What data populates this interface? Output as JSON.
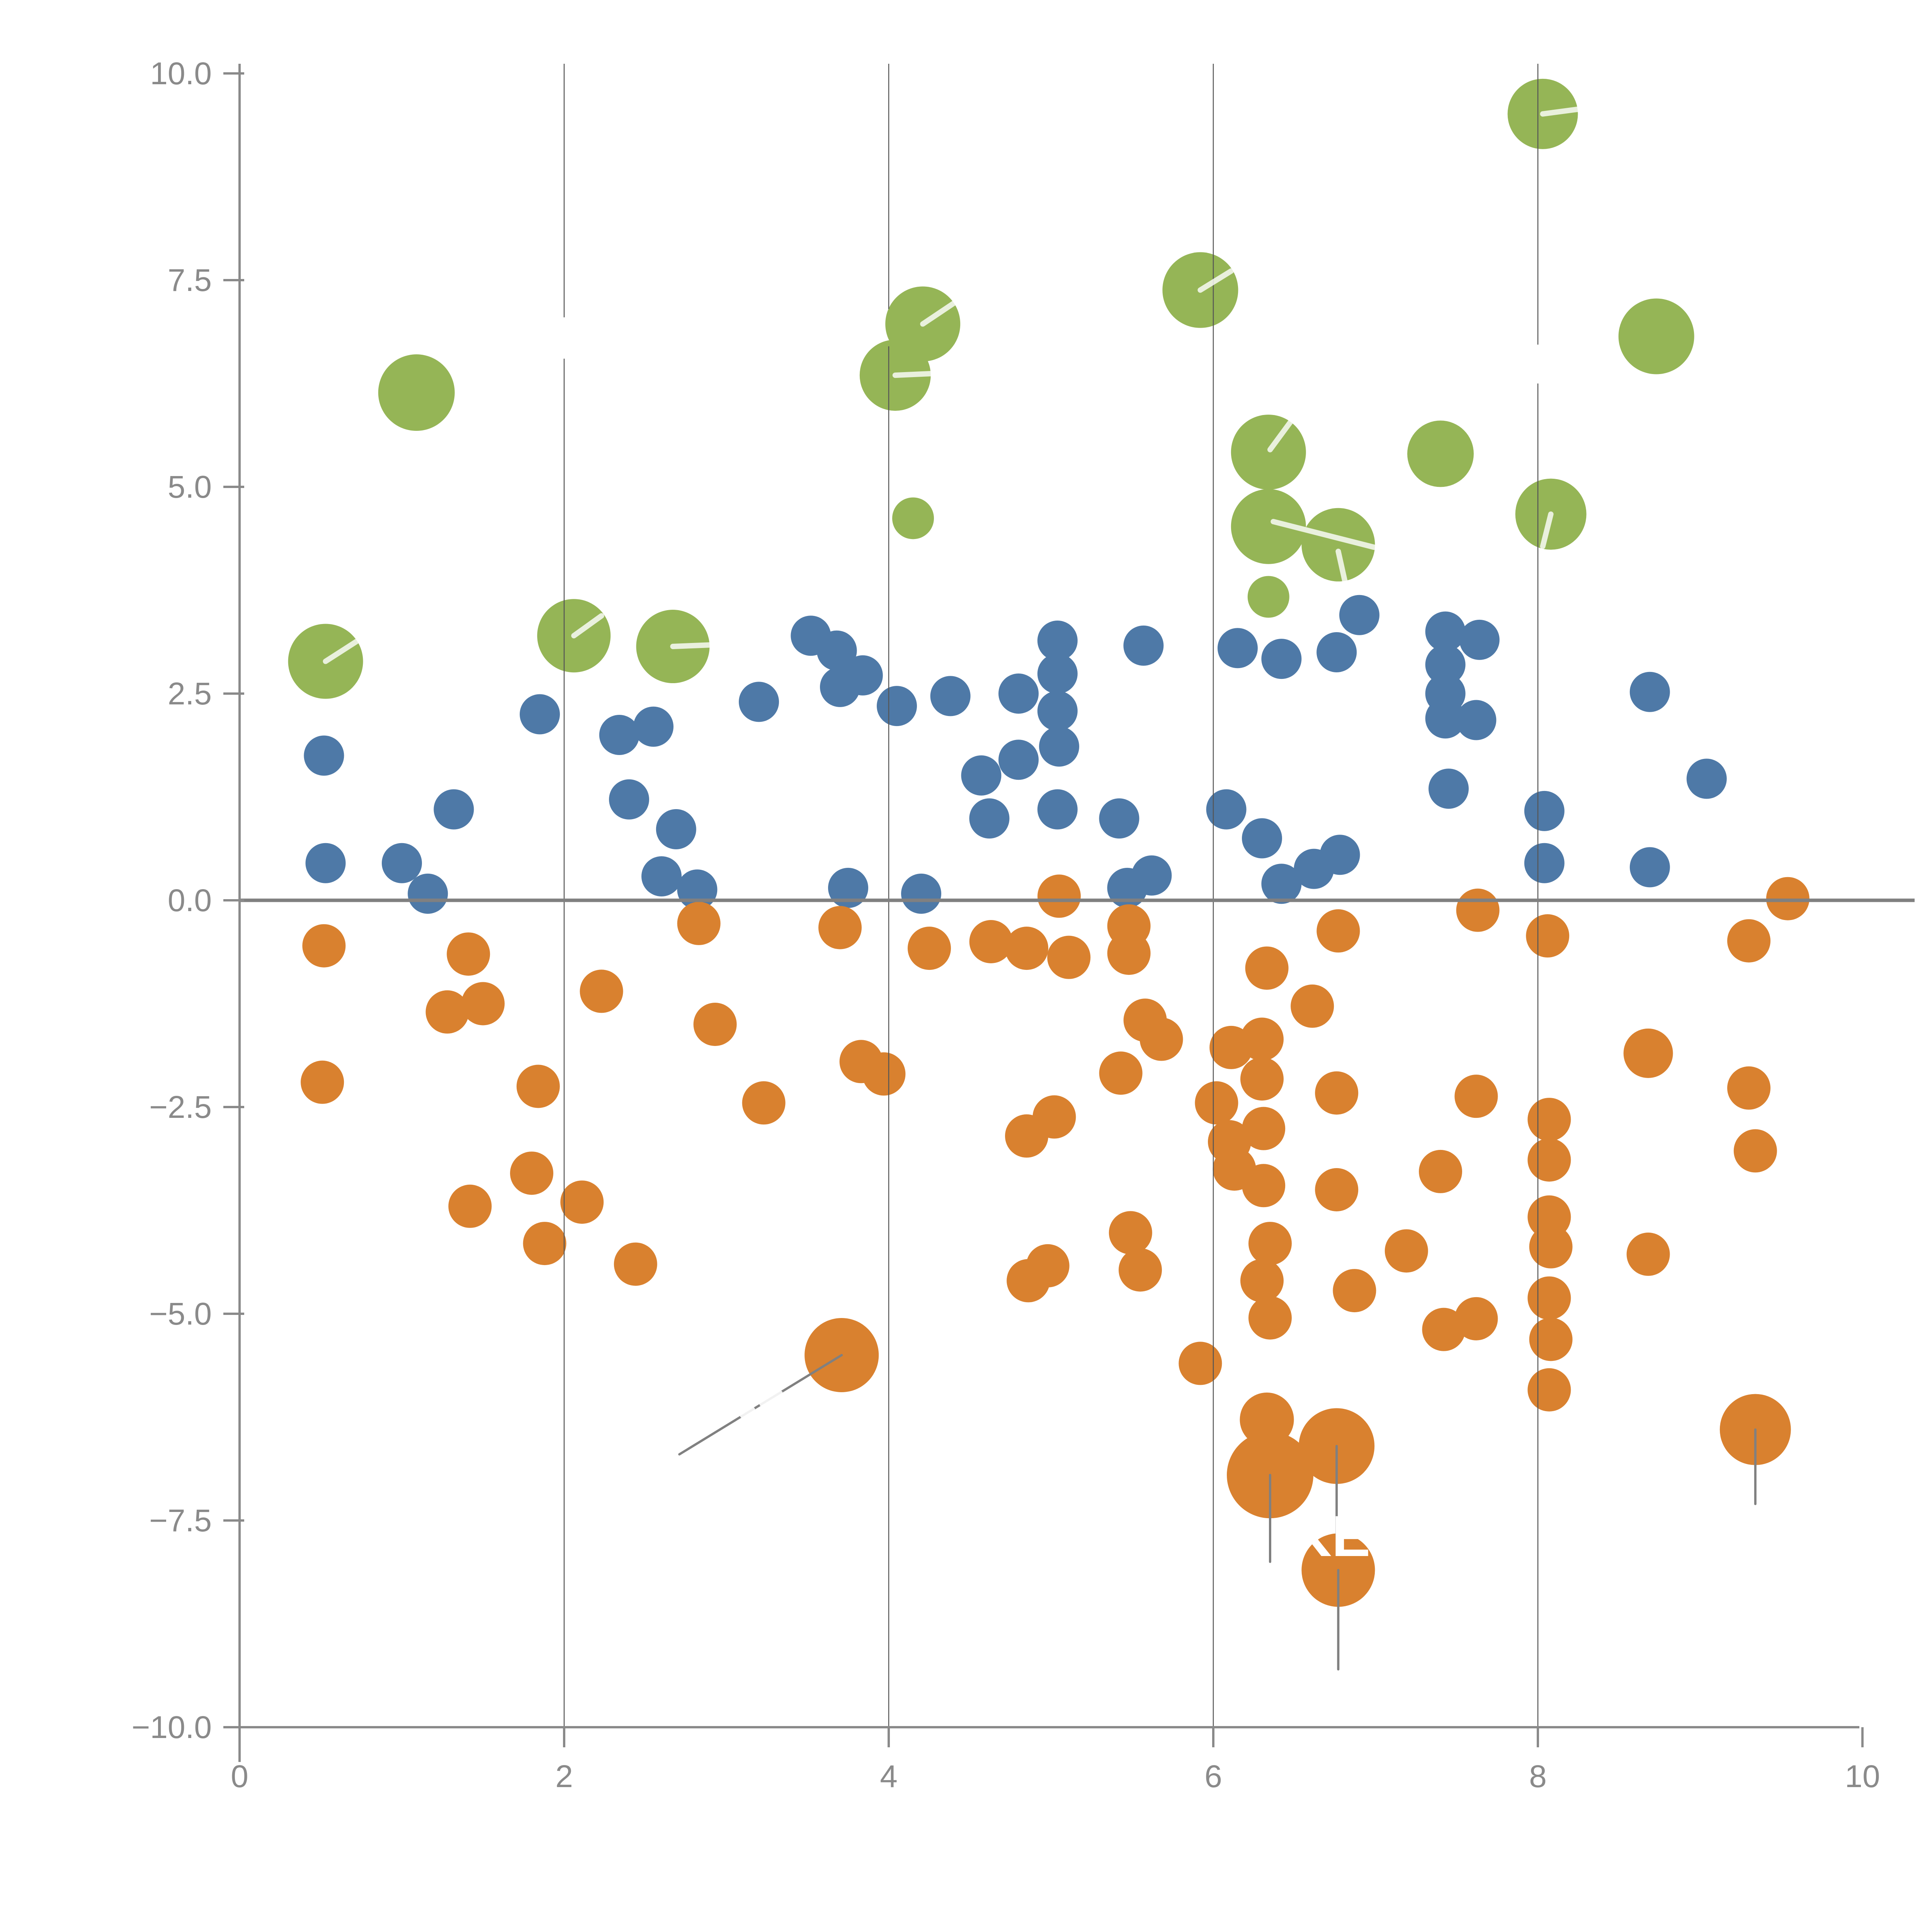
{
  "chart_data": {
    "type": "scatter",
    "title": "",
    "xlabel": "",
    "ylabel": "",
    "xlim": [
      0,
      10
    ],
    "ylim": [
      -10,
      10
    ],
    "grid": "vertical-only",
    "legend": "none",
    "x_ticks": [
      0,
      2,
      4,
      6,
      8,
      10
    ],
    "x_tick_labels": [
      "0",
      "2",
      "4",
      "6",
      "8",
      "10"
    ],
    "y_ticks": [
      10.0,
      7.5,
      5.0,
      2.5,
      0.0,
      -2.5,
      -5.0,
      -7.5,
      -10.0
    ],
    "y_tick_labels": [
      "10.0",
      "7.5",
      "5.0",
      "2.5",
      "0.0",
      "−2.5",
      "−5.0",
      "−7.5",
      "−10.0"
    ],
    "gridline_x_values": [
      2,
      4,
      6,
      8
    ],
    "gridline_gaps": [
      {
        "x": 2,
        "y_from": 6.55,
        "y_to": 7.05
      },
      {
        "x": 4,
        "y_from": 6.7,
        "y_to": 7.15
      },
      {
        "x": 8,
        "y_from": 6.25,
        "y_to": 6.72
      }
    ],
    "zero_line_y": 0,
    "series": [
      {
        "name": "green-bubbles",
        "color": "#95b556",
        "default_radius": 95,
        "points": [
          [
            1.09,
            6.14,
            99
          ],
          [
            0.53,
            2.89,
            97
          ],
          [
            2.06,
            3.2,
            95
          ],
          [
            2.67,
            3.07,
            95
          ],
          [
            4.21,
            6.97,
            97
          ],
          [
            4.04,
            6.35,
            92
          ],
          [
            4.15,
            4.62,
            54
          ],
          [
            5.92,
            7.38,
            98
          ],
          [
            8.03,
            9.51,
            91
          ],
          [
            8.73,
            6.82,
            98
          ],
          [
            6.34,
            5.42,
            97
          ],
          [
            6.34,
            4.52,
            97
          ],
          [
            6.77,
            4.3,
            95
          ],
          [
            6.34,
            3.67,
            54
          ],
          [
            7.4,
            5.4,
            86
          ],
          [
            8.08,
            4.67,
            92
          ]
        ]
      },
      {
        "name": "blue-dots",
        "color": "#4e79a7",
        "default_radius": 52,
        "points": [
          [
            0.52,
            1.75
          ],
          [
            1.32,
            1.1
          ],
          [
            0.53,
            0.45
          ],
          [
            1.0,
            0.45
          ],
          [
            1.16,
            0.08
          ],
          [
            1.85,
            2.25
          ],
          [
            2.34,
            2.0
          ],
          [
            2.55,
            2.1
          ],
          [
            2.4,
            1.22
          ],
          [
            2.69,
            0.86
          ],
          [
            2.6,
            0.29
          ],
          [
            2.82,
            0.13
          ],
          [
            3.2,
            2.4
          ],
          [
            3.52,
            3.2
          ],
          [
            3.68,
            3.02
          ],
          [
            3.7,
            2.58
          ],
          [
            3.84,
            2.72
          ],
          [
            4.05,
            2.35
          ],
          [
            3.75,
            0.15
          ],
          [
            4.2,
            0.08
          ],
          [
            4.38,
            2.47
          ],
          [
            4.8,
            2.5
          ],
          [
            5.04,
            3.14
          ],
          [
            5.04,
            2.74
          ],
          [
            5.04,
            2.29
          ],
          [
            5.05,
            1.86
          ],
          [
            4.8,
            1.7
          ],
          [
            4.57,
            1.51
          ],
          [
            4.62,
            0.99
          ],
          [
            5.04,
            1.1
          ],
          [
            5.42,
            0.99
          ],
          [
            5.57,
            3.08
          ],
          [
            5.47,
            0.15
          ],
          [
            5.62,
            0.3
          ],
          [
            6.15,
            3.05
          ],
          [
            6.42,
            2.92
          ],
          [
            6.76,
            3.0
          ],
          [
            6.9,
            3.45
          ],
          [
            6.08,
            1.1
          ],
          [
            6.3,
            0.75
          ],
          [
            6.42,
            0.2
          ],
          [
            6.62,
            0.38
          ],
          [
            6.78,
            0.55
          ],
          [
            7.43,
            3.25
          ],
          [
            7.64,
            3.15
          ],
          [
            7.43,
            2.85
          ],
          [
            7.43,
            2.5
          ],
          [
            7.43,
            2.2
          ],
          [
            7.62,
            2.18
          ],
          [
            7.45,
            1.35
          ],
          [
            8.04,
            1.08
          ],
          [
            8.04,
            0.45
          ],
          [
            8.69,
            2.52
          ],
          [
            9.04,
            1.47
          ],
          [
            8.69,
            0.4
          ]
        ]
      },
      {
        "name": "orange-dots",
        "color": "#d9812f",
        "default_radius": 56,
        "points": [
          [
            5.05,
            0.05
          ],
          [
            9.54,
            0.02
          ],
          [
            7.63,
            -0.12
          ],
          [
            0.52,
            -0.55
          ],
          [
            1.41,
            -0.65
          ],
          [
            2.83,
            -0.28
          ],
          [
            3.7,
            -0.33
          ],
          [
            4.25,
            -0.58
          ],
          [
            4.63,
            -0.5
          ],
          [
            4.85,
            -0.58
          ],
          [
            5.11,
            -0.69
          ],
          [
            5.48,
            -0.31
          ],
          [
            5.48,
            -0.64
          ],
          [
            6.33,
            -0.82
          ],
          [
            6.77,
            -0.37
          ],
          [
            8.06,
            -0.43
          ],
          [
            9.3,
            -0.49
          ],
          [
            1.28,
            -1.35
          ],
          [
            1.5,
            -1.25
          ],
          [
            2.23,
            -1.1
          ],
          [
            2.93,
            -1.5
          ],
          [
            0.51,
            -2.2
          ],
          [
            1.84,
            -2.25
          ],
          [
            3.23,
            -2.45
          ],
          [
            3.83,
            -1.95
          ],
          [
            3.97,
            -2.1
          ],
          [
            5.43,
            -2.09
          ],
          [
            5.58,
            -1.45
          ],
          [
            5.68,
            -1.68
          ],
          [
            6.11,
            -1.78
          ],
          [
            6.3,
            -1.68
          ],
          [
            6.61,
            -1.28
          ],
          [
            6.02,
            -2.45
          ],
          [
            6.3,
            -2.16
          ],
          [
            6.1,
            -2.92
          ],
          [
            6.31,
            -2.76
          ],
          [
            6.13,
            -3.25
          ],
          [
            6.31,
            -3.45
          ],
          [
            6.35,
            -4.15
          ],
          [
            6.3,
            -4.6
          ],
          [
            6.35,
            -5.05
          ],
          [
            5.92,
            -5.6
          ],
          [
            6.76,
            -2.33
          ],
          [
            7.62,
            -2.37
          ],
          [
            7.4,
            -3.28
          ],
          [
            6.76,
            -3.5
          ],
          [
            7.19,
            -4.24
          ],
          [
            6.87,
            -4.72
          ],
          [
            7.42,
            -5.19
          ],
          [
            7.62,
            -5.06
          ],
          [
            8.07,
            -2.65
          ],
          [
            8.07,
            -3.14
          ],
          [
            8.07,
            -3.83
          ],
          [
            8.08,
            -4.19
          ],
          [
            8.07,
            -4.81
          ],
          [
            8.08,
            -5.31
          ],
          [
            8.07,
            -5.92
          ],
          [
            8.68,
            -4.28
          ],
          [
            8.68,
            -1.85,
            64
          ],
          [
            9.3,
            -2.27
          ],
          [
            9.34,
            -3.03
          ],
          [
            1.8,
            -3.3
          ],
          [
            1.42,
            -3.7
          ],
          [
            2.11,
            -3.65
          ],
          [
            1.88,
            -4.15
          ],
          [
            2.44,
            -4.4
          ],
          [
            4.85,
            -2.85
          ],
          [
            5.02,
            -2.62
          ],
          [
            4.86,
            -4.6
          ],
          [
            4.98,
            -4.42
          ],
          [
            5.49,
            -4.02
          ],
          [
            5.55,
            -4.47
          ],
          [
            6.33,
            -6.28,
            70
          ]
        ]
      },
      {
        "name": "orange-large-bubbles",
        "color": "#d9812f",
        "default_radius": 95,
        "points": [
          [
            3.71,
            -5.5,
            96
          ],
          [
            6.35,
            -6.95,
            112
          ],
          [
            6.76,
            -6.6,
            98
          ],
          [
            6.77,
            -8.1,
            95
          ],
          [
            9.34,
            -6.4,
            92
          ]
        ]
      }
    ],
    "annotations": {
      "stems": [
        {
          "x": 6.35,
          "y_from": -6.95,
          "y_to": -8.0
        },
        {
          "x": 6.76,
          "y_from": -6.6,
          "y_to": -7.7
        },
        {
          "x": 6.77,
          "y_from": -8.1,
          "y_to": -9.3
        },
        {
          "x": 9.34,
          "y_from": -6.4,
          "y_to": -7.3
        }
      ],
      "leader_line": {
        "x1": 3.71,
        "y1": -5.5,
        "x2": 2.71,
        "y2": -6.7
      },
      "leader_white_dashes": [
        [
          3.33,
          -5.96,
          3.22,
          -6.09
        ],
        [
          3.16,
          -6.16,
          3.1,
          -6.23
        ]
      ],
      "white_slashes": [
        [
          0.53,
          2.89,
          0.72,
          3.13
        ],
        [
          2.06,
          3.2,
          2.23,
          3.44
        ],
        [
          2.67,
          3.07,
          3.05,
          3.1
        ],
        [
          4.21,
          6.97,
          4.4,
          7.22
        ],
        [
          4.04,
          6.35,
          4.38,
          6.38
        ],
        [
          5.92,
          7.38,
          6.11,
          7.61
        ],
        [
          8.03,
          9.51,
          8.26,
          9.57
        ],
        [
          6.35,
          5.45,
          6.5,
          5.85
        ],
        [
          6.37,
          4.58,
          6.99,
          4.27
        ],
        [
          6.77,
          4.22,
          6.82,
          3.78
        ],
        [
          8.08,
          4.67,
          8.03,
          4.28
        ]
      ],
      "hidden_watermark": {
        "text": "KE",
        "x": 6.72,
        "y": -7.93
      }
    }
  },
  "style": {
    "axis_color": "#8a8a8a",
    "gridline_color": "#555555",
    "zero_line_color": "#808080",
    "stem_color": "#808080",
    "tick_label_color": "#8a8a8a",
    "watermark_color": "#ffffff",
    "background": "#ffffff"
  }
}
